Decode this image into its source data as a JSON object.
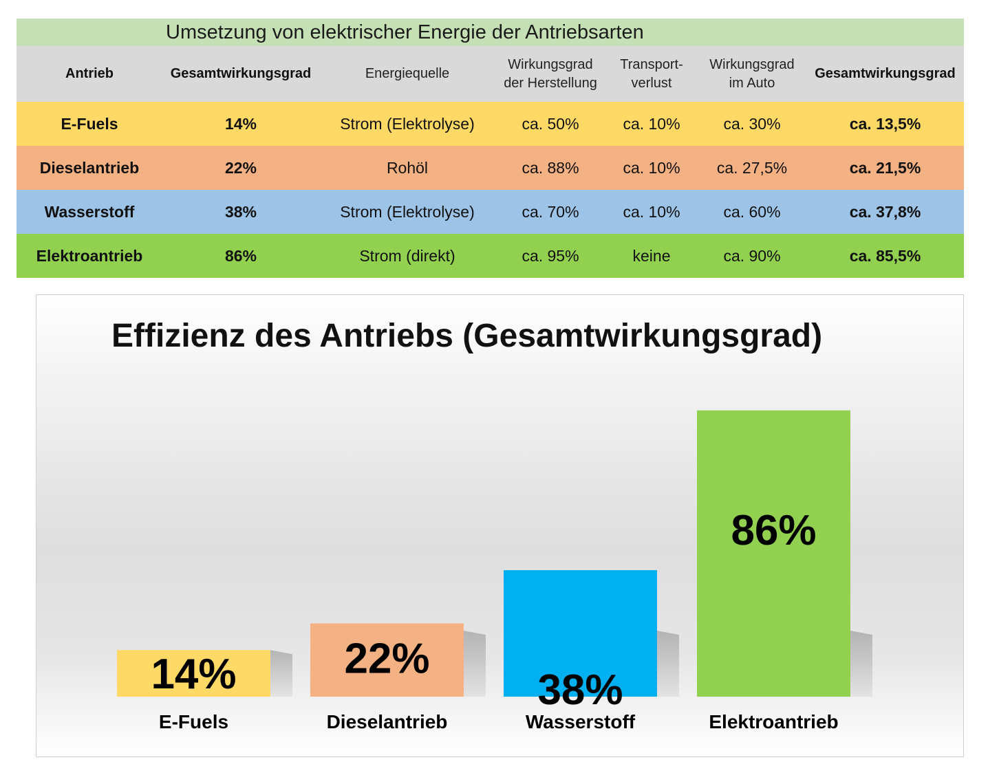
{
  "table": {
    "title": "Umsetzung von elektrischer Energie der Antriebsarten",
    "headers": [
      "Antrieb",
      "Gesamtwirkungsgrad",
      "Energiequelle",
      "Wirkungsgrad der Herstellung",
      "Transport- verlust",
      "Wirkungsgrad im Auto",
      "Gesamtwirkungsgrad"
    ],
    "rows": [
      {
        "name": "E-Fuels",
        "total": "14%",
        "source": "Strom (Elektrolyse)",
        "production": "ca. 50%",
        "transport": "ca. 10%",
        "car": "ca. 30%",
        "total_calc": "ca. 13,5%",
        "color": "#ffd966"
      },
      {
        "name": "Dieselantrieb",
        "total": "22%",
        "source": "Rohöl",
        "production": "ca. 88%",
        "transport": "ca. 10%",
        "car": "ca. 27,5%",
        "total_calc": "ca. 21,5%",
        "color": "#f4b183"
      },
      {
        "name": "Wasserstoff",
        "total": "38%",
        "source": "Strom (Elektrolyse)",
        "production": "ca. 70%",
        "transport": "ca. 10%",
        "car": "ca. 60%",
        "total_calc": "ca. 37,8%",
        "color": "#9dc3e6"
      },
      {
        "name": "Elektroantrieb",
        "total": "86%",
        "source": "Strom (direkt)",
        "production": "ca. 95%",
        "transport": "keine",
        "car": "ca. 90%",
        "total_calc": "ca. 85,5%",
        "color": "#92d050"
      }
    ]
  },
  "chart_data": {
    "type": "bar",
    "title": "Effizienz des Antriebs (Gesamtwirkungsgrad)",
    "categories": [
      "E-Fuels",
      "Dieselantrieb",
      "Wasserstoff",
      "Elektroantrieb"
    ],
    "values": [
      14,
      22,
      38,
      86
    ],
    "data_labels": [
      "14%",
      "22%",
      "38%",
      "86%"
    ],
    "colors": [
      "#ffd966",
      "#f4b183",
      "#00b0f0",
      "#92d050"
    ],
    "unit": "%",
    "ylim": [
      0,
      100
    ],
    "xlabel": "",
    "ylabel": "",
    "grid": false,
    "legend": false
  }
}
